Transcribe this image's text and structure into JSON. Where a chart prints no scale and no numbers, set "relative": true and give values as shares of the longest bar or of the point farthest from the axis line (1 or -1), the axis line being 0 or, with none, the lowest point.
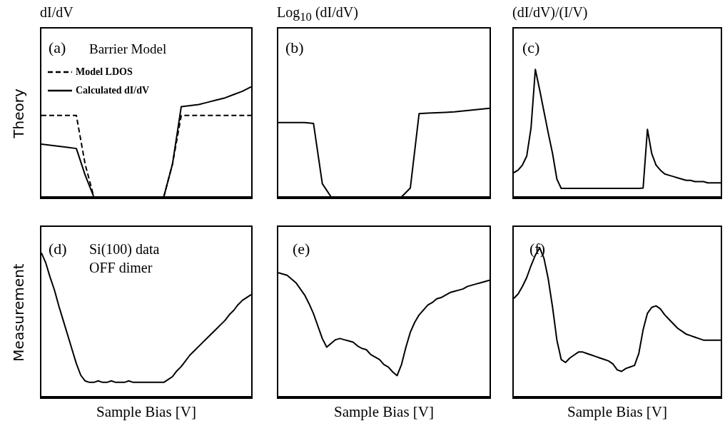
{
  "chart_data": [
    {
      "type": "line",
      "relative": true,
      "title": "dI/dV",
      "ylabel": "Theory",
      "legend": "top left",
      "annotations": [
        "(a)",
        "Barrier Model"
      ],
      "categories": [
        null,
        null,
        null,
        null,
        null,
        null,
        null,
        null,
        null,
        null,
        null,
        null,
        null,
        null,
        null,
        null,
        null,
        null,
        null,
        null,
        null,
        null,
        null,
        null,
        null
      ],
      "series": [
        {
          "name": "Model LDOS",
          "color": "#000000",
          "line_style": "dashed",
          "values": [
            0.74,
            0.74,
            0.74,
            0.74,
            0.74,
            0.3,
            0,
            0,
            0,
            0,
            0,
            0,
            0,
            0,
            0,
            0.3,
            0.74,
            0.74,
            0.74,
            0.74,
            0.74,
            0.74,
            0.74,
            0.74,
            0.74
          ]
        },
        {
          "name": "Calculated dI/dV",
          "color": "#000000",
          "line_style": "solid",
          "values": [
            0.48,
            0.47,
            0.46,
            0.45,
            0.44,
            0.2,
            0,
            0,
            0,
            0,
            0,
            0,
            0,
            0,
            0,
            0.3,
            0.82,
            0.83,
            0.84,
            0.86,
            0.88,
            0.9,
            0.93,
            0.96,
            1.0
          ]
        }
      ]
    },
    {
      "type": "line",
      "relative": true,
      "title": "Log$_{10}$ (dI/dV)",
      "annotations": [
        "(b)"
      ],
      "categories": [
        null,
        null,
        null,
        null,
        null,
        null,
        null,
        null,
        null,
        null,
        null,
        null,
        null,
        null,
        null,
        null,
        null,
        null,
        null,
        null,
        null,
        null,
        null,
        null,
        null
      ],
      "series": [
        {
          "color": "#000000",
          "values": [
            0.84,
            0.84,
            0.84,
            0.84,
            0.83,
            0.15,
            0,
            0,
            0,
            0,
            0,
            0,
            0,
            0,
            0,
            0.1,
            0.94,
            0.945,
            0.95,
            0.955,
            0.96,
            0.97,
            0.98,
            0.99,
            1.0
          ]
        }
      ]
    },
    {
      "type": "line",
      "relative": true,
      "title": "(dI/dV)/(I/V)",
      "annotations": [
        "(c)"
      ],
      "categories": [
        null,
        null,
        null,
        null,
        null,
        null,
        null,
        null,
        null,
        null,
        null,
        null,
        null,
        null,
        null,
        null,
        null,
        null,
        null,
        null,
        null,
        null,
        null,
        null,
        null,
        null,
        null,
        null,
        null,
        null,
        null,
        null,
        null,
        null,
        null,
        null,
        null,
        null,
        null,
        null,
        null,
        null,
        null,
        null,
        null,
        null,
        null,
        null,
        null
      ],
      "series": [
        {
          "color": "#000000",
          "values": [
            0.19,
            0.21,
            0.25,
            0.32,
            0.54,
            1.0,
            0.84,
            0.67,
            0.5,
            0.34,
            0.14,
            0.067,
            0.067,
            0.067,
            0.067,
            0.067,
            0.067,
            0.067,
            0.067,
            0.067,
            0.067,
            0.067,
            0.067,
            0.067,
            0.067,
            0.067,
            0.067,
            0.067,
            0.067,
            0.067,
            0.07,
            0.53,
            0.34,
            0.25,
            0.21,
            0.18,
            0.17,
            0.16,
            0.15,
            0.14,
            0.13,
            0.13,
            0.12,
            0.12,
            0.12,
            0.11,
            0.11,
            0.11,
            0.11
          ]
        }
      ]
    },
    {
      "type": "line",
      "relative": true,
      "ylabel": "Measurement",
      "xlabel": "Sample Bias [V]",
      "annotations": [
        "(d)",
        "Si(100) data",
        "OFF dimer"
      ],
      "categories": [
        null,
        null,
        null,
        null,
        null,
        null,
        null,
        null,
        null,
        null,
        null,
        null,
        null,
        null,
        null,
        null,
        null,
        null,
        null,
        null,
        null,
        null,
        null,
        null,
        null,
        null,
        null,
        null,
        null,
        null,
        null,
        null,
        null,
        null,
        null,
        null,
        null,
        null,
        null,
        null,
        null,
        null,
        null,
        null,
        null,
        null,
        null,
        null,
        null
      ],
      "series": [
        {
          "color": "#000000",
          "values": [
            1.0,
            0.93,
            0.83,
            0.74,
            0.63,
            0.53,
            0.43,
            0.33,
            0.23,
            0.15,
            0.11,
            0.1,
            0.1,
            0.11,
            0.1,
            0.1,
            0.11,
            0.1,
            0.1,
            0.1,
            0.11,
            0.1,
            0.1,
            0.1,
            0.1,
            0.1,
            0.1,
            0.1,
            0.1,
            0.12,
            0.14,
            0.18,
            0.21,
            0.25,
            0.29,
            0.32,
            0.35,
            0.38,
            0.41,
            0.44,
            0.47,
            0.5,
            0.53,
            0.57,
            0.6,
            0.64,
            0.67,
            0.69,
            0.71
          ]
        }
      ]
    },
    {
      "type": "line",
      "relative": true,
      "xlabel": "Sample Bias [V]",
      "annotations": [
        "(e)"
      ],
      "categories": [
        null,
        null,
        null,
        null,
        null,
        null,
        null,
        null,
        null,
        null,
        null,
        null,
        null,
        null,
        null,
        null,
        null,
        null,
        null,
        null,
        null,
        null,
        null,
        null,
        null,
        null,
        null,
        null,
        null,
        null,
        null,
        null,
        null,
        null,
        null,
        null,
        null,
        null,
        null,
        null,
        null,
        null,
        null,
        null,
        null,
        null,
        null,
        null,
        null
      ],
      "series": [
        {
          "color": "#000000",
          "values": [
            1.0,
            0.99,
            0.98,
            0.95,
            0.92,
            0.87,
            0.82,
            0.75,
            0.67,
            0.57,
            0.47,
            0.4,
            0.43,
            0.46,
            0.47,
            0.46,
            0.45,
            0.44,
            0.41,
            0.39,
            0.38,
            0.34,
            0.32,
            0.3,
            0.26,
            0.24,
            0.2,
            0.17,
            0.26,
            0.4,
            0.52,
            0.6,
            0.66,
            0.7,
            0.74,
            0.76,
            0.79,
            0.8,
            0.82,
            0.84,
            0.85,
            0.86,
            0.87,
            0.89,
            0.9,
            0.91,
            0.92,
            0.93,
            0.94
          ]
        }
      ]
    },
    {
      "type": "line",
      "relative": true,
      "xlabel": "Sample Bias [V]",
      "annotations": [
        "(f)"
      ],
      "categories": [
        null,
        null,
        null,
        null,
        null,
        null,
        null,
        null,
        null,
        null,
        null,
        null,
        null,
        null,
        null,
        null,
        null,
        null,
        null,
        null,
        null,
        null,
        null,
        null,
        null,
        null,
        null,
        null,
        null,
        null,
        null,
        null,
        null,
        null,
        null,
        null,
        null,
        null,
        null,
        null,
        null,
        null,
        null,
        null,
        null,
        null,
        null,
        null,
        null
      ],
      "series": [
        {
          "color": "#000000",
          "values": [
            0.66,
            0.69,
            0.74,
            0.8,
            0.88,
            0.95,
            1.0,
            0.93,
            0.79,
            0.6,
            0.38,
            0.25,
            0.23,
            0.26,
            0.28,
            0.3,
            0.3,
            0.29,
            0.28,
            0.27,
            0.26,
            0.25,
            0.24,
            0.22,
            0.18,
            0.17,
            0.19,
            0.2,
            0.21,
            0.29,
            0.45,
            0.56,
            0.6,
            0.61,
            0.59,
            0.55,
            0.52,
            0.49,
            0.46,
            0.44,
            0.42,
            0.41,
            0.4,
            0.39,
            0.38,
            0.38,
            0.38,
            0.38,
            0.38
          ]
        }
      ]
    }
  ]
}
